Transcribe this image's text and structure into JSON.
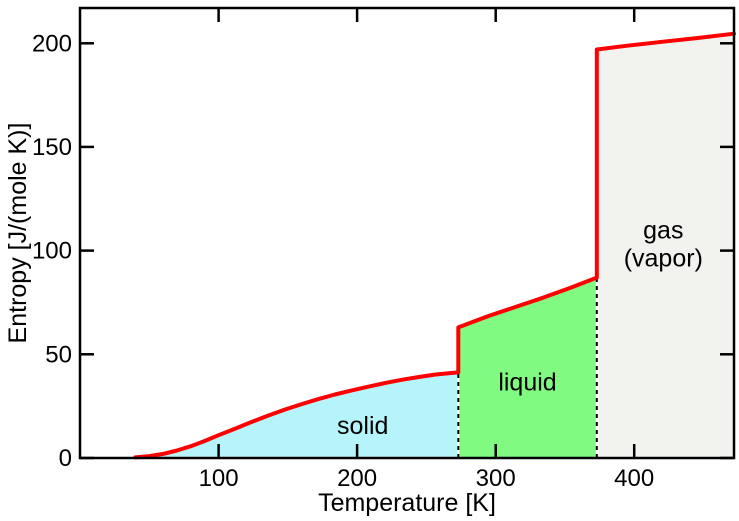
{
  "chart_data": {
    "type": "area",
    "title": "",
    "xlabel": "Temperature [K]",
    "ylabel": "Entropy [J/(mole K)]",
    "xlim": [
      0,
      472
    ],
    "ylim": [
      0,
      217
    ],
    "x_ticks": [
      100,
      200,
      300,
      400
    ],
    "y_ticks": [
      0,
      50,
      100,
      150,
      200
    ],
    "grid": false,
    "legend": "none",
    "curve_color": "#ff0000",
    "axis_color": "#000000",
    "background_color": "#ffffff",
    "curve_points": [
      [
        40,
        0.3
      ],
      [
        50,
        0.9
      ],
      [
        60,
        2.0
      ],
      [
        70,
        3.6
      ],
      [
        80,
        5.7
      ],
      [
        90,
        8.2
      ],
      [
        100,
        11.0
      ],
      [
        112,
        14.2
      ],
      [
        124,
        17.4
      ],
      [
        136,
        20.5
      ],
      [
        148,
        23.4
      ],
      [
        160,
        26.0
      ],
      [
        172,
        28.4
      ],
      [
        184,
        30.6
      ],
      [
        196,
        32.6
      ],
      [
        208,
        34.4
      ],
      [
        220,
        36.1
      ],
      [
        232,
        37.7
      ],
      [
        244,
        39.0
      ],
      [
        256,
        40.2
      ],
      [
        266,
        40.9
      ],
      [
        273,
        41.3
      ],
      [
        273,
        63.0
      ],
      [
        295,
        68.5
      ],
      [
        315,
        73.0
      ],
      [
        335,
        77.5
      ],
      [
        355,
        82.3
      ],
      [
        373,
        87.0
      ],
      [
        373,
        197.0
      ],
      [
        395,
        198.8
      ],
      [
        420,
        200.7
      ],
      [
        445,
        202.5
      ],
      [
        472,
        204.6
      ]
    ],
    "phase_boundaries": [
      {
        "T": 273,
        "S_top": 41.3
      },
      {
        "T": 373,
        "S_top": 87.0
      }
    ],
    "regions": [
      {
        "name": "solid",
        "label_lines": [
          "solid"
        ],
        "fill": "#b5f4fa",
        "label_at": [
          204,
          16
        ],
        "polygon": [
          [
            40,
            0
          ],
          [
            50,
            0.9
          ],
          [
            60,
            2.0
          ],
          [
            70,
            3.6
          ],
          [
            80,
            5.7
          ],
          [
            90,
            8.2
          ],
          [
            100,
            11.0
          ],
          [
            112,
            14.2
          ],
          [
            124,
            17.4
          ],
          [
            136,
            20.5
          ],
          [
            148,
            23.4
          ],
          [
            160,
            26.0
          ],
          [
            172,
            28.4
          ],
          [
            184,
            30.6
          ],
          [
            196,
            32.6
          ],
          [
            208,
            34.4
          ],
          [
            220,
            36.1
          ],
          [
            232,
            37.7
          ],
          [
            244,
            39.0
          ],
          [
            256,
            40.2
          ],
          [
            266,
            40.9
          ],
          [
            273,
            41.3
          ],
          [
            273,
            0
          ]
        ]
      },
      {
        "name": "liquid",
        "label_lines": [
          "liquid"
        ],
        "fill": "#80fa80",
        "label_at": [
          323,
          37
        ],
        "polygon": [
          [
            273,
            0
          ],
          [
            273,
            63.0
          ],
          [
            295,
            68.5
          ],
          [
            315,
            73.0
          ],
          [
            335,
            77.5
          ],
          [
            355,
            82.3
          ],
          [
            373,
            87.0
          ],
          [
            373,
            0
          ]
        ]
      },
      {
        "name": "gas",
        "label_lines": [
          "gas",
          "(vapor)"
        ],
        "fill": "#f2f2ef",
        "label_at": [
          421,
          103.5
        ],
        "polygon": [
          [
            373,
            0
          ],
          [
            373,
            197.0
          ],
          [
            395,
            198.8
          ],
          [
            420,
            200.7
          ],
          [
            445,
            202.5
          ],
          [
            472,
            204.6
          ],
          [
            472,
            0
          ]
        ]
      }
    ]
  }
}
